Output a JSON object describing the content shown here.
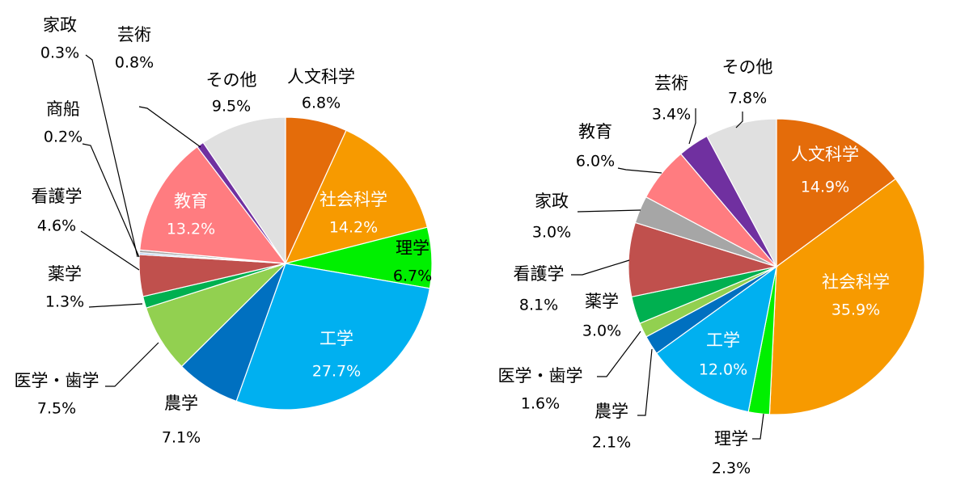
{
  "chart_data": [
    {
      "type": "pie",
      "title": "",
      "start": "top",
      "direction": "clockwise",
      "slices": [
        {
          "label": "人文科学",
          "value": 6.8,
          "display": "6.8%",
          "color": "#e46c0a"
        },
        {
          "label": "社会科学",
          "value": 14.2,
          "display": "14.2%",
          "color": "#f79a00"
        },
        {
          "label": "理学",
          "value": 6.7,
          "display": "6.7%",
          "color": "#00f000"
        },
        {
          "label": "工学",
          "value": 27.7,
          "display": "27.7%",
          "color": "#00b0f0"
        },
        {
          "label": "農学",
          "value": 7.1,
          "display": "7.1%",
          "color": "#0070c0"
        },
        {
          "label": "医学・歯学",
          "value": 7.5,
          "display": "7.5%",
          "color": "#92d050"
        },
        {
          "label": "薬学",
          "value": 1.3,
          "display": "1.3%",
          "color": "#00b050"
        },
        {
          "label": "看護学",
          "value": 4.6,
          "display": "4.6%",
          "color": "#c0504d"
        },
        {
          "label": "商船",
          "value": 0.2,
          "display": "0.2%",
          "color": "#8eb4e3"
        },
        {
          "label": "家政",
          "value": 0.3,
          "display": "0.3%",
          "color": "#a6a6a6"
        },
        {
          "label": "教育",
          "value": 13.2,
          "display": "13.2%",
          "color": "#ff7c80"
        },
        {
          "label": "芸術",
          "value": 0.8,
          "display": "0.8%",
          "color": "#7030a0"
        },
        {
          "label": "その他",
          "value": 9.5,
          "display": "9.5%",
          "color": "#e0e0e0"
        }
      ]
    },
    {
      "type": "pie",
      "title": "",
      "start": "top",
      "direction": "clockwise",
      "slices": [
        {
          "label": "人文科学",
          "value": 14.9,
          "display": "14.9%",
          "color": "#e46c0a"
        },
        {
          "label": "社会科学",
          "value": 35.9,
          "display": "35.9%",
          "color": "#f79a00"
        },
        {
          "label": "理学",
          "value": 2.3,
          "display": "2.3%",
          "color": "#00f000"
        },
        {
          "label": "工学",
          "value": 12.0,
          "display": "12.0%",
          "color": "#00b0f0"
        },
        {
          "label": "農学",
          "value": 2.1,
          "display": "2.1%",
          "color": "#0070c0"
        },
        {
          "label": "医学・歯学",
          "value": 1.6,
          "display": "1.6%",
          "color": "#92d050"
        },
        {
          "label": "薬学",
          "value": 3.0,
          "display": "3.0%",
          "color": "#00b050"
        },
        {
          "label": "看護学",
          "value": 8.1,
          "display": "8.1%",
          "color": "#c0504d"
        },
        {
          "label": "家政",
          "value": 3.0,
          "display": "3.0%",
          "color": "#a6a6a6"
        },
        {
          "label": "教育",
          "value": 6.0,
          "display": "6.0%",
          "color": "#ff7c80"
        },
        {
          "label": "芸術",
          "value": 3.4,
          "display": "3.4%",
          "color": "#7030a0"
        },
        {
          "label": "その他",
          "value": 7.8,
          "display": "7.8%",
          "color": "#e0e0e0"
        }
      ]
    }
  ]
}
